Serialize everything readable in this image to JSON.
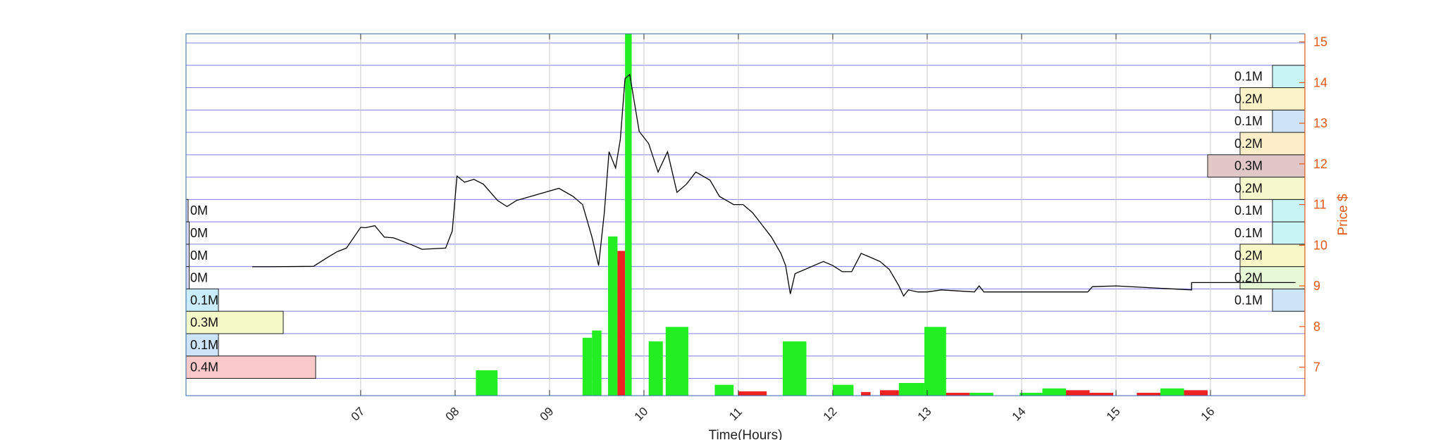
{
  "chart_data": {
    "type": "candlestick-volume-profile",
    "xlabel": "Time(Hours)",
    "ylabel": "Price $",
    "x_ticks": [
      "07",
      "08",
      "09",
      "10",
      "11",
      "12",
      "13",
      "14",
      "15",
      "16"
    ],
    "x_range_hours": [
      5.15,
      17.0
    ],
    "y_ticks": [
      7,
      8,
      9,
      10,
      11,
      12,
      13,
      14,
      15
    ],
    "ylim": [
      6.3,
      15.2
    ],
    "grid": true,
    "colors": {
      "axis_right": "#e05a1a",
      "grid_h": "#5555e0",
      "grid_v": "#c8c8c8",
      "up_volume": "#22ee22",
      "down_volume": "#ee2222",
      "price": "#000000"
    },
    "price_bins": [
      7.0,
      7.55,
      8.1,
      8.65,
      9.2,
      9.75,
      10.3,
      10.85,
      11.4,
      11.95,
      12.5,
      13.05,
      13.6,
      14.15,
      14.7
    ],
    "left_profile": [
      {
        "price": 7.0,
        "label": "0.4M",
        "volume_m": 0.4,
        "color": "#f9c8c8"
      },
      {
        "price": 7.55,
        "label": "0.1M",
        "volume_m": 0.1,
        "color": "#cce3f8"
      },
      {
        "price": 8.1,
        "label": "0.3M",
        "volume_m": 0.3,
        "color": "#f4f9c8"
      },
      {
        "price": 8.65,
        "label": "0.1M",
        "volume_m": 0.1,
        "color": "#c8ecf9"
      },
      {
        "price": 9.2,
        "label": "0M",
        "volume_m": 0.01,
        "color": "#d6d6f4"
      },
      {
        "price": 9.75,
        "label": "0M",
        "volume_m": 0.01,
        "color": "#d6d6f4"
      },
      {
        "price": 10.3,
        "label": "0M",
        "volume_m": 0.01,
        "color": "#d6d6f4"
      },
      {
        "price": 10.85,
        "label": "0M",
        "volume_m": 0.005,
        "color": "#d6d6f4"
      }
    ],
    "right_profile": [
      {
        "price": 8.65,
        "label": "0.1M",
        "volume_m": 0.1,
        "color": "#cce3f8"
      },
      {
        "price": 9.2,
        "label": "0.2M",
        "volume_m": 0.2,
        "color": "#e6f8d6"
      },
      {
        "price": 9.75,
        "label": "0.2M",
        "volume_m": 0.2,
        "color": "#f7f7c8"
      },
      {
        "price": 10.3,
        "label": "0.1M",
        "volume_m": 0.1,
        "color": "#c8f4f6"
      },
      {
        "price": 10.85,
        "label": "0.1M",
        "volume_m": 0.1,
        "color": "#c8f4f6"
      },
      {
        "price": 11.4,
        "label": "0.2M",
        "volume_m": 0.2,
        "color": "#f4f8cc"
      },
      {
        "price": 11.95,
        "label": "0.3M",
        "volume_m": 0.3,
        "color": "#e0c8c8"
      },
      {
        "price": 12.5,
        "label": "0.2M",
        "volume_m": 0.2,
        "color": "#fbeec8"
      },
      {
        "price": 13.05,
        "label": "0.1M",
        "volume_m": 0.1,
        "color": "#cce3f8"
      },
      {
        "price": 13.6,
        "label": "0.2M",
        "volume_m": 0.2,
        "color": "#fbf3c8"
      },
      {
        "price": 14.15,
        "label": "0.1M",
        "volume_m": 0.1,
        "color": "#c8f4f6"
      }
    ],
    "price_series": [
      [
        5.85,
        9.47
      ],
      [
        6.0,
        9.47
      ],
      [
        6.5,
        9.48
      ],
      [
        6.65,
        9.7
      ],
      [
        6.75,
        9.84
      ],
      [
        6.85,
        9.93
      ],
      [
        7.0,
        10.44
      ],
      [
        7.05,
        10.43
      ],
      [
        7.15,
        10.48
      ],
      [
        7.25,
        10.2
      ],
      [
        7.35,
        10.18
      ],
      [
        7.55,
        10.0
      ],
      [
        7.65,
        9.9
      ],
      [
        7.9,
        9.93
      ],
      [
        7.97,
        10.35
      ],
      [
        8.02,
        11.7
      ],
      [
        8.1,
        11.55
      ],
      [
        8.2,
        11.62
      ],
      [
        8.3,
        11.5
      ],
      [
        8.45,
        11.1
      ],
      [
        8.55,
        10.95
      ],
      [
        8.65,
        11.1
      ],
      [
        8.8,
        11.2
      ],
      [
        8.95,
        11.3
      ],
      [
        9.1,
        11.4
      ],
      [
        9.25,
        11.2
      ],
      [
        9.35,
        11.0
      ],
      [
        9.45,
        10.2
      ],
      [
        9.52,
        9.5
      ],
      [
        9.58,
        10.8
      ],
      [
        9.63,
        12.3
      ],
      [
        9.7,
        11.9
      ],
      [
        9.75,
        12.6
      ],
      [
        9.8,
        14.1
      ],
      [
        9.85,
        14.2
      ],
      [
        9.9,
        13.5
      ],
      [
        9.95,
        12.8
      ],
      [
        10.05,
        12.5
      ],
      [
        10.15,
        11.8
      ],
      [
        10.25,
        12.3
      ],
      [
        10.35,
        11.3
      ],
      [
        10.45,
        11.5
      ],
      [
        10.55,
        11.8
      ],
      [
        10.7,
        11.6
      ],
      [
        10.8,
        11.2
      ],
      [
        10.95,
        11.0
      ],
      [
        11.05,
        11.0
      ],
      [
        11.15,
        10.8
      ],
      [
        11.25,
        10.5
      ],
      [
        11.35,
        10.2
      ],
      [
        11.45,
        9.8
      ],
      [
        11.5,
        9.5
      ],
      [
        11.55,
        8.8
      ],
      [
        11.6,
        9.3
      ],
      [
        11.7,
        9.4
      ],
      [
        11.8,
        9.5
      ],
      [
        11.9,
        9.6
      ],
      [
        12.0,
        9.5
      ],
      [
        12.1,
        9.35
      ],
      [
        12.2,
        9.35
      ],
      [
        12.3,
        9.8
      ],
      [
        12.4,
        9.7
      ],
      [
        12.5,
        9.6
      ],
      [
        12.6,
        9.4
      ],
      [
        12.7,
        9.0
      ],
      [
        12.75,
        8.75
      ],
      [
        12.8,
        8.9
      ],
      [
        12.9,
        8.85
      ],
      [
        13.0,
        8.85
      ],
      [
        13.15,
        8.9
      ],
      [
        13.5,
        8.85
      ],
      [
        13.55,
        9.0
      ],
      [
        13.6,
        8.85
      ],
      [
        14.7,
        8.85
      ],
      [
        14.75,
        8.98
      ],
      [
        15.0,
        9.0
      ],
      [
        15.8,
        8.9
      ],
      [
        15.8,
        9.08
      ],
      [
        16.9,
        9.08
      ]
    ],
    "volume_bars": [
      {
        "x": [
          8.22,
          8.45
        ],
        "h": 0.07,
        "dir": "up"
      },
      {
        "x": [
          9.35,
          9.45
        ],
        "h": 0.16,
        "dir": "up"
      },
      {
        "x": [
          9.45,
          9.55
        ],
        "h": 0.18,
        "dir": "up"
      },
      {
        "x": [
          9.62,
          9.72
        ],
        "h": 0.44,
        "dir": "up"
      },
      {
        "x": [
          9.72,
          9.8
        ],
        "h": 0.4,
        "dir": "down"
      },
      {
        "x": [
          9.8,
          9.87
        ],
        "h": 1.0,
        "dir": "up"
      },
      {
        "x": [
          10.05,
          10.2
        ],
        "h": 0.15,
        "dir": "up"
      },
      {
        "x": [
          10.23,
          10.47
        ],
        "h": 0.19,
        "dir": "up"
      },
      {
        "x": [
          10.75,
          10.95
        ],
        "h": 0.03,
        "dir": "up"
      },
      {
        "x": [
          11.0,
          11.3
        ],
        "h": 0.012,
        "dir": "down"
      },
      {
        "x": [
          11.47,
          11.72
        ],
        "h": 0.15,
        "dir": "up"
      },
      {
        "x": [
          12.0,
          12.22
        ],
        "h": 0.03,
        "dir": "up"
      },
      {
        "x": [
          12.3,
          12.4
        ],
        "h": 0.01,
        "dir": "down"
      },
      {
        "x": [
          12.5,
          12.7
        ],
        "h": 0.015,
        "dir": "down"
      },
      {
        "x": [
          12.7,
          12.97
        ],
        "h": 0.035,
        "dir": "up"
      },
      {
        "x": [
          12.97,
          13.2
        ],
        "h": 0.19,
        "dir": "up"
      },
      {
        "x": [
          13.2,
          13.45
        ],
        "h": 0.008,
        "dir": "down"
      },
      {
        "x": [
          13.45,
          13.7
        ],
        "h": 0.008,
        "dir": "up"
      },
      {
        "x": [
          13.98,
          14.22
        ],
        "h": 0.008,
        "dir": "up"
      },
      {
        "x": [
          14.22,
          14.47
        ],
        "h": 0.02,
        "dir": "up"
      },
      {
        "x": [
          14.47,
          14.72
        ],
        "h": 0.015,
        "dir": "down"
      },
      {
        "x": [
          14.72,
          14.97
        ],
        "h": 0.008,
        "dir": "down"
      },
      {
        "x": [
          15.22,
          15.47
        ],
        "h": 0.008,
        "dir": "down"
      },
      {
        "x": [
          15.47,
          15.72
        ],
        "h": 0.02,
        "dir": "up"
      },
      {
        "x": [
          15.72,
          15.97
        ],
        "h": 0.015,
        "dir": "down"
      }
    ]
  }
}
